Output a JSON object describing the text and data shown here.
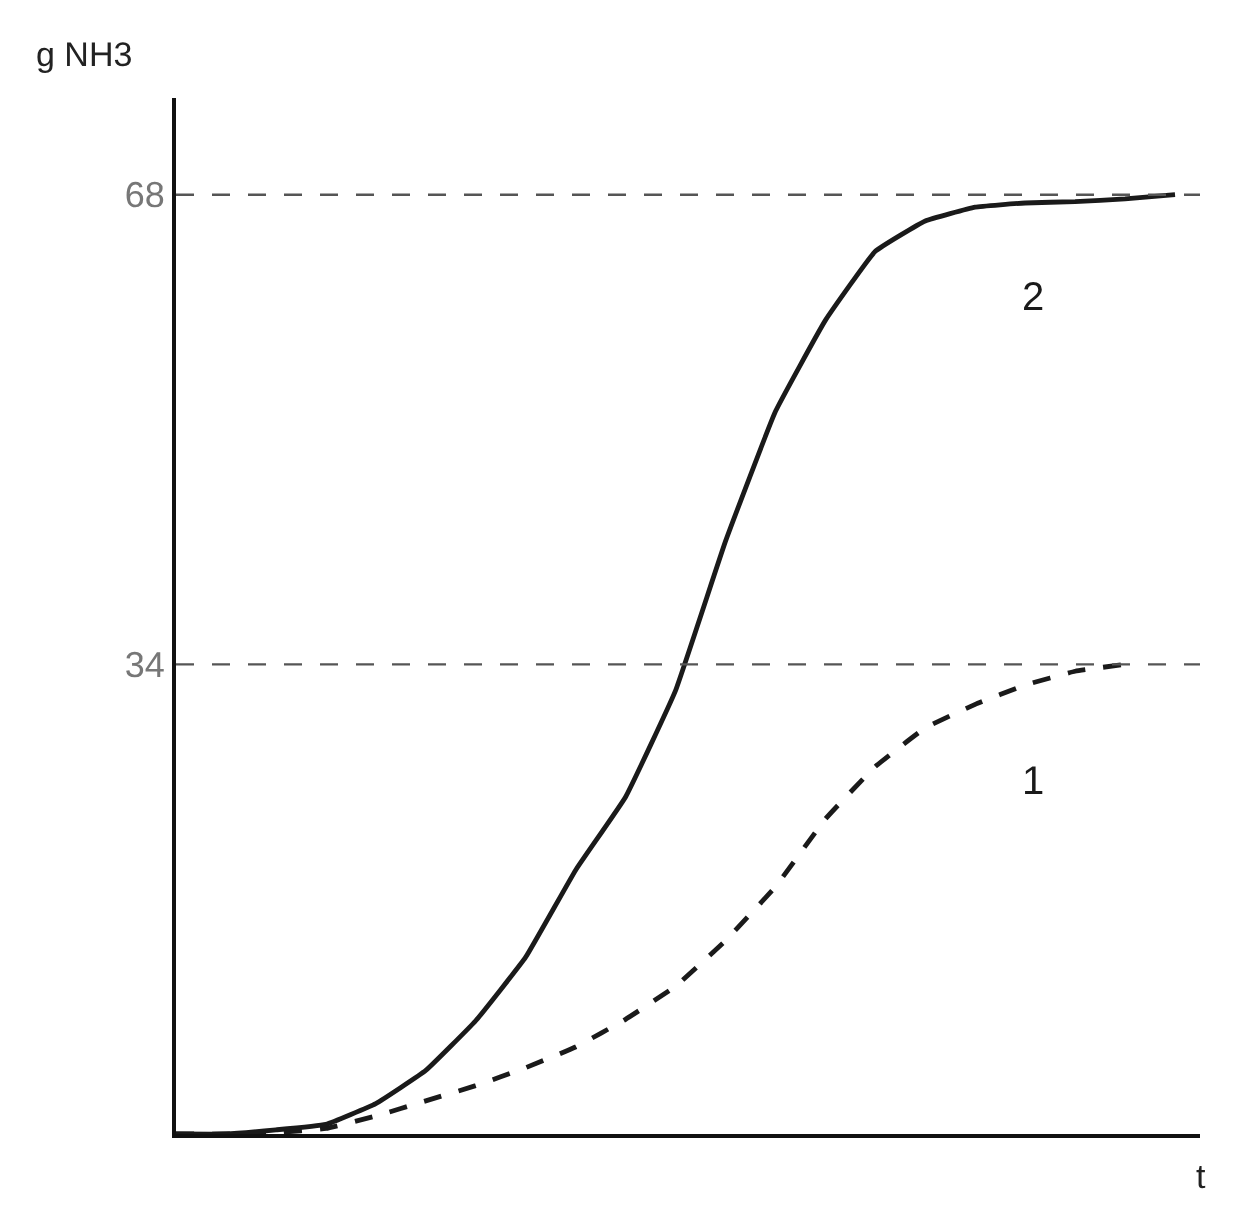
{
  "chart_data": {
    "type": "line",
    "ylabel": "g NH3",
    "xlabel": "t",
    "categories": [
      null,
      null,
      null,
      null,
      null,
      null,
      null,
      null,
      null,
      null,
      null,
      null,
      null,
      null,
      null,
      null,
      null,
      null,
      null,
      null,
      null
    ],
    "series": [
      {
        "name": "1",
        "color": "#1a1a1a",
        "line_style": "dashed",
        "values": [
          0,
          0,
          0.1,
          0.4,
          1.3,
          2.4,
          3.5,
          4.8,
          6.3,
          8.3,
          10.7,
          14.0,
          17.9,
          22.8,
          26.6,
          29.4,
          31.1,
          32.5,
          33.5,
          34.0,
          null
        ]
      },
      {
        "name": "2",
        "color": "#1a1a1a",
        "line_style": "solid",
        "values": [
          0,
          0,
          0.3,
          0.7,
          2.2,
          4.6,
          8.2,
          12.8,
          19.1,
          24.4,
          32.1,
          42.9,
          52.3,
          58.9,
          63.9,
          66.1,
          67.1,
          67.4,
          67.5,
          67.7,
          68
        ]
      }
    ],
    "ylim": [
      0,
      75
    ],
    "yticks": [
      34,
      68
    ],
    "ref_lines": [
      {
        "axis": "y",
        "value": 34,
        "color": "#555555",
        "line_style": "dashed"
      },
      {
        "axis": "y",
        "value": 68,
        "color": "#555555",
        "line_style": "dashed"
      }
    ],
    "legend": false,
    "marker": "none"
  }
}
